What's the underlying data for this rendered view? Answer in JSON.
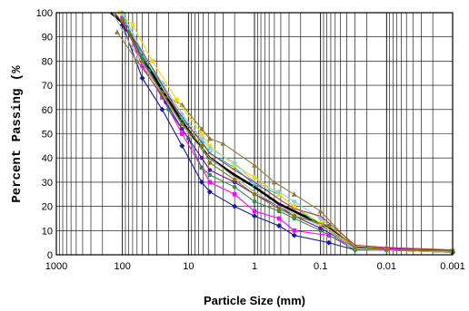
{
  "chart_data": {
    "type": "line",
    "xlabel": "Particle Size (mm)",
    "ylabel": "Percent Passing (%",
    "x_scale": "log",
    "x_reversed": true,
    "xlim": [
      1000,
      0.001
    ],
    "ylim": [
      0,
      100
    ],
    "xticks": [
      1000,
      100,
      10,
      1,
      0.1,
      0.01,
      0.001
    ],
    "xtick_labels": [
      "1000",
      "100",
      "10",
      "1",
      "0.1",
      "0.01",
      "0.001"
    ],
    "yticks": [
      0,
      10,
      20,
      30,
      40,
      50,
      60,
      70,
      80,
      90,
      100
    ],
    "ytick_labels": [
      "0",
      "10",
      "20",
      "30",
      "40",
      "50",
      "60",
      "70",
      "80",
      "90",
      "100"
    ],
    "grid": true,
    "legend": "none",
    "series": [
      {
        "color": "#000000",
        "marker": "none",
        "bold": true,
        "points": [
          [
            150,
            100
          ],
          [
            100,
            96
          ],
          [
            50,
            82
          ],
          [
            25,
            68
          ],
          [
            12.5,
            55
          ],
          [
            6.3,
            44
          ],
          [
            4.75,
            40
          ],
          [
            2,
            33
          ],
          [
            1,
            28
          ],
          [
            0.425,
            21
          ],
          [
            0.25,
            18
          ],
          [
            0.075,
            11
          ],
          [
            0.03,
            3
          ],
          [
            0.01,
            2.5
          ],
          [
            0.005,
            2
          ],
          [
            0.001,
            1.5
          ]
        ]
      },
      {
        "color": "#1a1a9a",
        "marker": "diamond",
        "points": [
          [
            100,
            95
          ],
          [
            50,
            73
          ],
          [
            25,
            60
          ],
          [
            12.5,
            45
          ],
          [
            6.3,
            30
          ],
          [
            4.75,
            26
          ],
          [
            2,
            20
          ],
          [
            1,
            16
          ],
          [
            0.425,
            12
          ],
          [
            0.25,
            8
          ],
          [
            0.075,
            5
          ],
          [
            0.03,
            2
          ],
          [
            0.01,
            2
          ],
          [
            0.001,
            1
          ]
        ]
      },
      {
        "color": "#ff00ff",
        "marker": "square",
        "points": [
          [
            100,
            98
          ],
          [
            50,
            78
          ],
          [
            25,
            65
          ],
          [
            12.5,
            50
          ],
          [
            6.3,
            36
          ],
          [
            4.75,
            30
          ],
          [
            2,
            25
          ],
          [
            1,
            18
          ],
          [
            0.425,
            15
          ],
          [
            0.25,
            10
          ],
          [
            0.075,
            8
          ],
          [
            0.03,
            3
          ],
          [
            0.01,
            2.5
          ],
          [
            0.001,
            1.5
          ]
        ]
      },
      {
        "color": "#8b7e3a",
        "marker": "triangle",
        "points": [
          [
            120,
            92
          ],
          [
            60,
            80
          ],
          [
            25,
            66
          ],
          [
            12.5,
            62
          ],
          [
            6.3,
            52
          ],
          [
            4.75,
            48
          ],
          [
            3,
            46
          ],
          [
            1,
            37
          ],
          [
            0.5,
            30
          ],
          [
            0.25,
            25
          ],
          [
            0.1,
            18
          ],
          [
            0.03,
            3
          ],
          [
            0.01,
            3
          ],
          [
            0.001,
            2
          ]
        ]
      },
      {
        "color": "#00bcd4",
        "marker": "cross",
        "points": [
          [
            100,
            99
          ],
          [
            50,
            82
          ],
          [
            25,
            70
          ],
          [
            12.5,
            56
          ],
          [
            6.3,
            47
          ],
          [
            4.75,
            42
          ],
          [
            2,
            36
          ],
          [
            1,
            29
          ],
          [
            0.425,
            25
          ],
          [
            0.25,
            20
          ],
          [
            0.1,
            12
          ],
          [
            0.03,
            3
          ],
          [
            0.01,
            2
          ],
          [
            0.001,
            1.5
          ]
        ]
      },
      {
        "color": "#ffd700",
        "marker": "square",
        "points": [
          [
            110,
            100
          ],
          [
            70,
            95
          ],
          [
            35,
            80
          ],
          [
            15,
            64
          ],
          [
            6.3,
            50
          ],
          [
            4.75,
            45
          ],
          [
            2,
            37
          ],
          [
            1,
            32
          ],
          [
            0.425,
            25
          ],
          [
            0.25,
            20
          ],
          [
            0.1,
            13
          ],
          [
            0.03,
            3
          ],
          [
            0.01,
            2
          ],
          [
            0.001,
            1.5
          ]
        ]
      },
      {
        "color": "#2e8b57",
        "marker": "circle",
        "points": [
          [
            80,
            92
          ],
          [
            40,
            76
          ],
          [
            20,
            60
          ],
          [
            10,
            48
          ],
          [
            6.3,
            36
          ],
          [
            4.75,
            33
          ],
          [
            2,
            28
          ],
          [
            1,
            22
          ],
          [
            0.425,
            18
          ],
          [
            0.25,
            15
          ],
          [
            0.1,
            10
          ],
          [
            0.03,
            2
          ],
          [
            0.01,
            2
          ],
          [
            0.001,
            1
          ]
        ]
      },
      {
        "color": "#6a0dad",
        "marker": "circle",
        "points": [
          [
            90,
            94
          ],
          [
            45,
            78
          ],
          [
            22,
            63
          ],
          [
            12.5,
            52
          ],
          [
            6.3,
            40
          ],
          [
            4.75,
            35
          ],
          [
            2,
            30
          ],
          [
            1,
            25
          ],
          [
            0.425,
            20
          ],
          [
            0.25,
            16
          ],
          [
            0.1,
            11
          ],
          [
            0.03,
            3
          ],
          [
            0.01,
            2
          ],
          [
            0.001,
            1
          ]
        ]
      },
      {
        "color": "#87ceeb",
        "marker": "diamond",
        "points": [
          [
            100,
            100
          ],
          [
            50,
            84
          ],
          [
            25,
            71
          ],
          [
            12.5,
            58
          ],
          [
            6.3,
            48
          ],
          [
            4.75,
            44
          ],
          [
            2,
            38
          ],
          [
            1,
            30
          ],
          [
            0.425,
            26
          ],
          [
            0.25,
            22
          ],
          [
            0.1,
            15
          ],
          [
            0.03,
            3
          ],
          [
            0.01,
            2
          ],
          [
            0.001,
            1.5
          ]
        ]
      },
      {
        "color": "#b0b0b0",
        "marker": "none",
        "points": [
          [
            140,
            100
          ],
          [
            80,
            88
          ],
          [
            40,
            75
          ],
          [
            20,
            62
          ],
          [
            10,
            50
          ],
          [
            4.75,
            40
          ],
          [
            2,
            32
          ],
          [
            1,
            26
          ],
          [
            0.425,
            20
          ],
          [
            0.25,
            17
          ],
          [
            0.1,
            12
          ],
          [
            0.03,
            2.5
          ],
          [
            0.01,
            2
          ],
          [
            0.001,
            1
          ]
        ]
      },
      {
        "color": "#c0392b",
        "marker": "none",
        "points": [
          [
            130,
            100
          ],
          [
            70,
            90
          ],
          [
            35,
            77
          ],
          [
            15,
            60
          ],
          [
            8,
            50
          ],
          [
            4.75,
            42
          ],
          [
            2,
            35
          ],
          [
            1,
            30
          ],
          [
            0.425,
            23
          ],
          [
            0.25,
            19
          ],
          [
            0.1,
            16
          ],
          [
            0.03,
            4
          ],
          [
            0.01,
            3
          ],
          [
            0.001,
            2
          ]
        ]
      },
      {
        "color": "#808000",
        "marker": "circle",
        "points": [
          [
            100,
            97
          ],
          [
            50,
            80
          ],
          [
            25,
            67
          ],
          [
            12.5,
            54
          ],
          [
            6.3,
            45
          ],
          [
            4.75,
            38
          ],
          [
            2,
            31
          ],
          [
            1,
            25
          ],
          [
            0.425,
            19
          ],
          [
            0.25,
            16
          ],
          [
            0.075,
            12
          ],
          [
            0.03,
            3
          ],
          [
            0.01,
            2
          ],
          [
            0.001,
            1.5
          ]
        ]
      }
    ]
  }
}
